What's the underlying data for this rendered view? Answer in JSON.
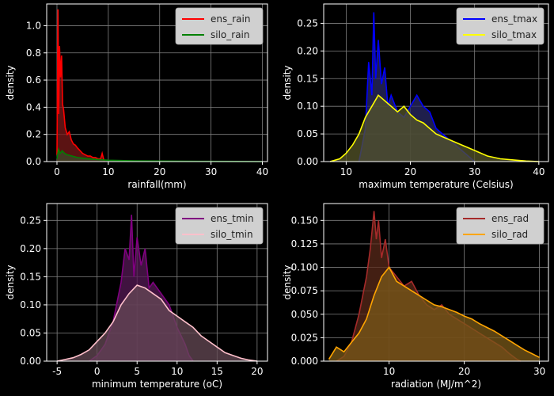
{
  "chart_data": [
    {
      "type": "area",
      "xlabel": "rainfall(mm)",
      "ylabel": "density",
      "xlim": [
        -2,
        41
      ],
      "ylim": [
        0,
        1.16
      ],
      "xticks": [
        0,
        10,
        20,
        30,
        40
      ],
      "yticks": [
        0.0,
        0.2,
        0.4,
        0.6,
        0.8,
        1.0
      ],
      "ytick_labels": [
        "0.0",
        "0.2",
        "0.4",
        "0.6",
        "0.8",
        "1.0"
      ],
      "grid": true,
      "legend_position": "top-right",
      "series": [
        {
          "name": "ens_rain",
          "color": "#ff0000",
          "fill": "#7a1a1a",
          "x": [
            0,
            0.2,
            0.35,
            0.5,
            0.7,
            0.9,
            1.1,
            1.3,
            1.6,
            2.0,
            2.4,
            2.8,
            3.2,
            3.6,
            4.0,
            4.5,
            5.0,
            5.5,
            6.0,
            6.5,
            7.0,
            7.5,
            8.0,
            8.5,
            8.8,
            9.0,
            9.2
          ],
          "y": [
            0.05,
            1.12,
            0.35,
            0.85,
            0.62,
            0.78,
            0.42,
            0.38,
            0.25,
            0.2,
            0.22,
            0.16,
            0.13,
            0.12,
            0.1,
            0.08,
            0.06,
            0.05,
            0.04,
            0.04,
            0.03,
            0.03,
            0.02,
            0.02,
            0.06,
            0.03,
            0.0
          ]
        },
        {
          "name": "silo_rain",
          "color": "#008000",
          "fill": "#3a4a2a",
          "x": [
            0,
            0.3,
            0.6,
            1.0,
            1.5,
            2.0,
            3.0,
            4.0,
            5.0,
            6.0,
            8.0,
            10.0,
            15.0,
            20.0,
            25.0,
            30.0,
            35.0,
            40.0
          ],
          "y": [
            0.02,
            0.09,
            0.06,
            0.08,
            0.06,
            0.05,
            0.04,
            0.03,
            0.025,
            0.02,
            0.015,
            0.01,
            0.006,
            0.004,
            0.003,
            0.002,
            0.001,
            0.0
          ]
        }
      ]
    },
    {
      "type": "area",
      "xlabel": "maximum temperature (Celsius)",
      "ylabel": "density",
      "xlim": [
        6.5,
        41.5
      ],
      "ylim": [
        0,
        0.285
      ],
      "xticks": [
        10,
        20,
        30,
        40
      ],
      "yticks": [
        0.0,
        0.05,
        0.1,
        0.15,
        0.2,
        0.25
      ],
      "ytick_labels": [
        "0.00",
        "0.05",
        "0.10",
        "0.15",
        "0.20",
        "0.25"
      ],
      "grid": true,
      "legend_position": "top-right",
      "series": [
        {
          "name": "ens_tmax",
          "color": "#0000ff",
          "fill": "#2a2a66",
          "x": [
            12.0,
            13.0,
            13.5,
            14.0,
            14.3,
            14.6,
            15.0,
            15.5,
            16.0,
            16.5,
            17.0,
            18.0,
            19.0,
            20.0,
            21.0,
            22.0,
            23.0,
            24.0,
            25.0,
            26.0,
            27.0,
            28.0,
            29.0,
            30.0
          ],
          "y": [
            0.0,
            0.06,
            0.18,
            0.12,
            0.27,
            0.15,
            0.22,
            0.14,
            0.17,
            0.1,
            0.12,
            0.09,
            0.08,
            0.1,
            0.12,
            0.1,
            0.09,
            0.06,
            0.05,
            0.04,
            0.03,
            0.02,
            0.01,
            0.0
          ]
        },
        {
          "name": "silo_tmax",
          "color": "#ffff00",
          "fill": "#55552a",
          "x": [
            7.5,
            9.0,
            10.0,
            11.0,
            12.0,
            13.0,
            14.0,
            15.0,
            16.0,
            17.0,
            18.0,
            19.0,
            20.0,
            21.0,
            22.0,
            23.0,
            24.0,
            25.0,
            26.0,
            27.0,
            28.0,
            29.0,
            30.0,
            32.0,
            34.0,
            36.0,
            38.0,
            40.0
          ],
          "y": [
            0.0,
            0.005,
            0.015,
            0.03,
            0.05,
            0.08,
            0.1,
            0.12,
            0.11,
            0.1,
            0.09,
            0.1,
            0.085,
            0.075,
            0.07,
            0.06,
            0.05,
            0.045,
            0.04,
            0.035,
            0.03,
            0.025,
            0.02,
            0.01,
            0.005,
            0.003,
            0.001,
            0.0
          ]
        }
      ]
    },
    {
      "type": "area",
      "xlabel": "minimum temperature (oC)",
      "ylabel": "density",
      "xlim": [
        -6.3,
        21.3
      ],
      "ylim": [
        0,
        0.28
      ],
      "xticks": [
        -5,
        0,
        5,
        10,
        15,
        20
      ],
      "yticks": [
        0.0,
        0.05,
        0.1,
        0.15,
        0.2,
        0.25
      ],
      "ytick_labels": [
        "0.00",
        "0.05",
        "0.10",
        "0.15",
        "0.20",
        "0.25"
      ],
      "grid": true,
      "legend_position": "top-right",
      "series": [
        {
          "name": "ens_tmin",
          "color": "#800080",
          "fill": "#551a55",
          "x": [
            -1.0,
            0.0,
            1.0,
            2.0,
            3.0,
            3.5,
            4.0,
            4.3,
            4.6,
            5.0,
            5.5,
            6.0,
            6.5,
            7.0,
            8.0,
            9.0,
            10.0,
            11.0,
            11.5,
            12.0
          ],
          "y": [
            0.0,
            0.01,
            0.03,
            0.07,
            0.14,
            0.2,
            0.18,
            0.26,
            0.15,
            0.22,
            0.17,
            0.2,
            0.13,
            0.14,
            0.12,
            0.1,
            0.06,
            0.03,
            0.01,
            0.0
          ]
        },
        {
          "name": "silo_tmin",
          "color": "#ffc0cb",
          "fill": "#664a55",
          "x": [
            -5.0,
            -4.0,
            -3.0,
            -2.0,
            -1.0,
            0.0,
            1.0,
            2.0,
            3.0,
            4.0,
            5.0,
            6.0,
            7.0,
            8.0,
            9.0,
            10.0,
            11.0,
            12.0,
            13.0,
            14.0,
            15.0,
            16.0,
            17.0,
            18.0,
            19.0,
            20.0
          ],
          "y": [
            0.0,
            0.003,
            0.006,
            0.012,
            0.02,
            0.035,
            0.05,
            0.07,
            0.1,
            0.12,
            0.135,
            0.13,
            0.12,
            0.11,
            0.09,
            0.08,
            0.07,
            0.06,
            0.045,
            0.035,
            0.025,
            0.015,
            0.01,
            0.005,
            0.002,
            0.0
          ]
        }
      ]
    },
    {
      "type": "area",
      "xlabel": "radiation (MJ/m^2)",
      "ylabel": "density",
      "xlim": [
        1.3,
        31.2
      ],
      "ylim": [
        0,
        0.168
      ],
      "xticks": [
        10,
        20,
        30
      ],
      "yticks": [
        0.0,
        0.025,
        0.05,
        0.075,
        0.1,
        0.125,
        0.15
      ],
      "ytick_labels": [
        "0.000",
        "0.025",
        "0.050",
        "0.075",
        "0.100",
        "0.125",
        "0.150"
      ],
      "grid": true,
      "legend_position": "top-right",
      "series": [
        {
          "name": "ens_rad",
          "color": "#a52a2a",
          "fill": "#5a2a1a",
          "x": [
            3.0,
            4.0,
            5.0,
            6.0,
            7.0,
            7.5,
            8.0,
            8.3,
            8.6,
            9.0,
            9.5,
            10.0,
            11.0,
            12.0,
            13.0,
            14.0,
            15.0,
            16.0,
            17.0,
            18.0,
            19.0,
            20.0,
            21.0,
            22.0,
            23.0,
            24.0,
            25.0,
            26.0,
            27.0,
            27.5
          ],
          "y": [
            0.0,
            0.005,
            0.02,
            0.05,
            0.09,
            0.12,
            0.16,
            0.13,
            0.15,
            0.11,
            0.13,
            0.1,
            0.09,
            0.08,
            0.085,
            0.07,
            0.06,
            0.055,
            0.06,
            0.05,
            0.045,
            0.04,
            0.035,
            0.03,
            0.025,
            0.02,
            0.015,
            0.008,
            0.002,
            0.0
          ]
        },
        {
          "name": "silo_rad",
          "color": "#ffa500",
          "fill": "#7a5a1a",
          "x": [
            2.0,
            3.0,
            4.0,
            5.0,
            6.0,
            7.0,
            8.0,
            9.0,
            10.0,
            11.0,
            12.0,
            13.0,
            14.0,
            15.0,
            16.0,
            17.0,
            18.0,
            19.0,
            20.0,
            21.0,
            22.0,
            23.0,
            24.0,
            25.0,
            26.0,
            27.0,
            28.0,
            29.0,
            30.0
          ],
          "y": [
            0.002,
            0.015,
            0.01,
            0.02,
            0.03,
            0.045,
            0.07,
            0.09,
            0.1,
            0.085,
            0.08,
            0.075,
            0.07,
            0.065,
            0.06,
            0.058,
            0.055,
            0.052,
            0.048,
            0.045,
            0.04,
            0.036,
            0.032,
            0.027,
            0.022,
            0.017,
            0.012,
            0.008,
            0.004
          ]
        }
      ]
    }
  ],
  "panel_names": [
    "rainfall-density-chart",
    "max-temperature-density-chart",
    "min-temperature-density-chart",
    "radiation-density-chart"
  ],
  "style": {
    "background": "#000000",
    "axis_color": "#ffffff",
    "grid_color": "#808080",
    "legend_bg": "#d0d0d0"
  }
}
